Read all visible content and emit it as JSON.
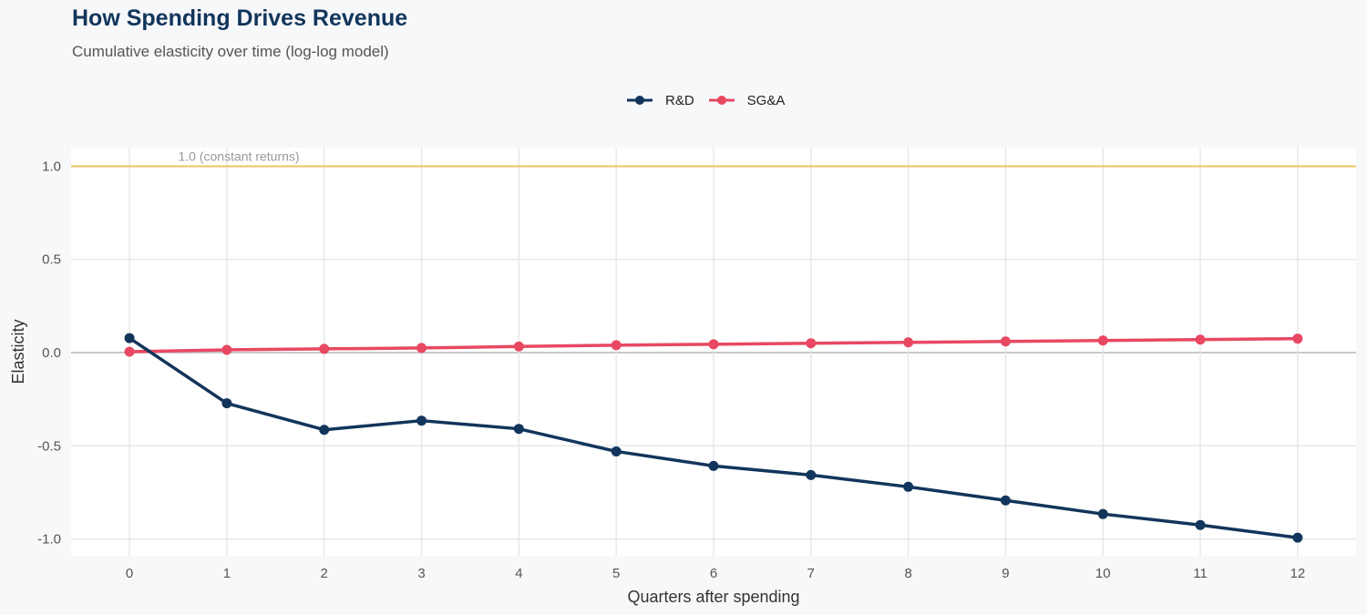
{
  "title": "How Spending Drives Revenue",
  "subtitle": "Cumulative elasticity over time (log-log model)",
  "chart_data": {
    "type": "line",
    "xlabel": "Quarters after spending",
    "ylabel": "Elasticity",
    "x": [
      0,
      1,
      2,
      3,
      4,
      5,
      6,
      7,
      8,
      9,
      10,
      11,
      12
    ],
    "x_ticks": [
      "0",
      "1",
      "2",
      "3",
      "4",
      "5",
      "6",
      "7",
      "8",
      "9",
      "10",
      "11",
      "12"
    ],
    "y_ticks": [
      {
        "value": 1.0,
        "label": "1.0"
      },
      {
        "value": 0.5,
        "label": "0.5"
      },
      {
        "value": 0.0,
        "label": "0.0"
      },
      {
        "value": -0.5,
        "label": "-0.5"
      },
      {
        "value": -1.0,
        "label": "-1.0"
      }
    ],
    "xlim": [
      -0.6,
      12.6
    ],
    "ylim": [
      -1.09,
      1.1
    ],
    "grid": true,
    "legend_position": "top",
    "series": [
      {
        "name": "R&D",
        "color": "#12355b",
        "values": [
          0.078,
          -0.272,
          -0.414,
          -0.365,
          -0.409,
          -0.53,
          -0.608,
          -0.657,
          -0.72,
          -0.793,
          -0.866,
          -0.925,
          -0.993
        ]
      },
      {
        "name": "SG&A",
        "color": "#e84862",
        "values": [
          0.005,
          0.015,
          0.02,
          0.025,
          0.033,
          0.04,
          0.045,
          0.05,
          0.055,
          0.06,
          0.065,
          0.07,
          0.075
        ]
      }
    ],
    "reference_line": {
      "y": 1.0,
      "label": "1.0 (constant returns)",
      "color": "#f2c45a"
    }
  }
}
